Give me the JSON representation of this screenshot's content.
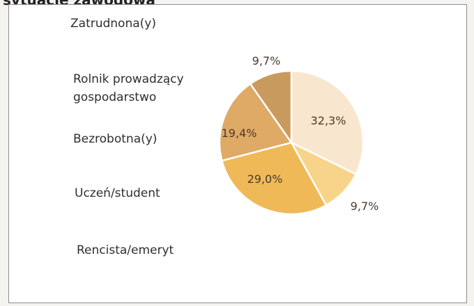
{
  "page_title": "sytuację zawodową",
  "legend_entries": [
    "Zatrudnona(y)",
    "Rolnik prowadzący gospodarstwo",
    "Bezrobotna(y)",
    "Uczeń/student",
    "Rencista/emeryt"
  ],
  "chart_data": {
    "type": "pie",
    "title": "",
    "slices": [
      {
        "value": 32.3,
        "label": "32,3%",
        "color": "#f9e6ce"
      },
      {
        "value": 9.7,
        "label": "9,7%",
        "color": "#f7d489"
      },
      {
        "value": 29.0,
        "label": "29,0%",
        "color": "#efb958"
      },
      {
        "value": 19.4,
        "label": "19,4%",
        "color": "#dfa966"
      },
      {
        "value": 9.7,
        "label": "9,7%",
        "color": "#c99a5e"
      }
    ],
    "start_angle_deg": 0,
    "direction": "clockwise"
  }
}
